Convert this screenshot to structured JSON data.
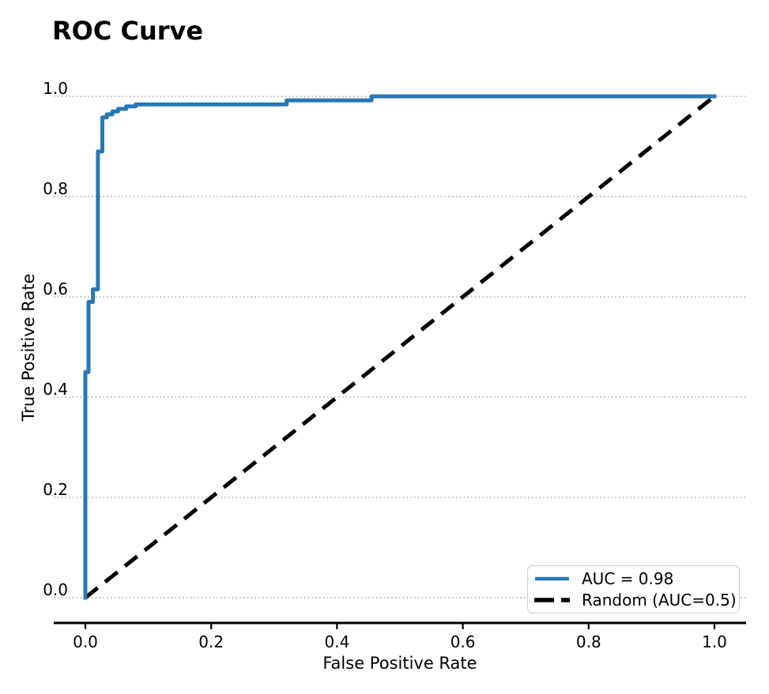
{
  "chart_data": {
    "type": "line",
    "title": "ROC Curve",
    "xlabel": "False Positive Rate",
    "ylabel": "True Positive Rate",
    "xlim": [
      0.0,
      1.0
    ],
    "ylim": [
      0.0,
      1.0
    ],
    "x_ticks": [
      0.0,
      0.2,
      0.4,
      0.6,
      0.8,
      1.0
    ],
    "x_tick_labels": [
      "0.0",
      "0.2",
      "0.4",
      "0.6",
      "0.8",
      "1.0"
    ],
    "y_ticks": [
      0.0,
      0.2,
      0.4,
      0.6,
      0.8,
      1.0
    ],
    "y_tick_labels": [
      "0.0",
      "0.2",
      "0.4",
      "0.6",
      "0.8",
      "1.0"
    ],
    "grid": {
      "axis": "y",
      "style": "dotted",
      "color": "#a9a9a9"
    },
    "legend": {
      "position": "lower right",
      "entries": [
        {
          "label": "AUC = 0.98",
          "color": "#2878b4",
          "style": "solid"
        },
        {
          "label": "Random (AUC=0.5)",
          "color": "#000000",
          "style": "dashed"
        }
      ]
    },
    "series": [
      {
        "name": "ROC curve",
        "auc": 0.98,
        "color": "#2878b4",
        "style": "solid",
        "points": [
          [
            0.0,
            0.0
          ],
          [
            0.0,
            0.45
          ],
          [
            0.005,
            0.45
          ],
          [
            0.005,
            0.59
          ],
          [
            0.012,
            0.59
          ],
          [
            0.012,
            0.615
          ],
          [
            0.02,
            0.615
          ],
          [
            0.02,
            0.89
          ],
          [
            0.027,
            0.89
          ],
          [
            0.027,
            0.958
          ],
          [
            0.034,
            0.958
          ],
          [
            0.034,
            0.964
          ],
          [
            0.043,
            0.964
          ],
          [
            0.043,
            0.97
          ],
          [
            0.052,
            0.97
          ],
          [
            0.052,
            0.975
          ],
          [
            0.065,
            0.975
          ],
          [
            0.065,
            0.98
          ],
          [
            0.08,
            0.98
          ],
          [
            0.08,
            0.984
          ],
          [
            0.32,
            0.984
          ],
          [
            0.32,
            0.992
          ],
          [
            0.455,
            0.992
          ],
          [
            0.455,
            1.0
          ],
          [
            1.0,
            1.0
          ]
        ]
      },
      {
        "name": "Random classifier",
        "auc": 0.5,
        "color": "#000000",
        "style": "dashed",
        "points": [
          [
            0.0,
            0.0
          ],
          [
            1.0,
            1.0
          ]
        ]
      }
    ]
  }
}
